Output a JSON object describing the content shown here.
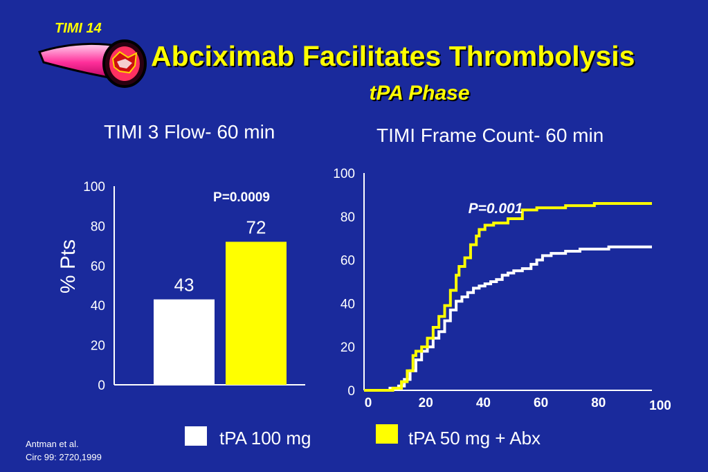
{
  "header": {
    "badge": "TIMI 14",
    "title": "Abciximab Facilitates Thrombolysis",
    "subtitle": "tPA Phase"
  },
  "colors": {
    "background": "#1a2a9c",
    "accent": "#ffff00",
    "series_tpa100": "#ffffff",
    "series_tpa50_abx": "#ffff00"
  },
  "logo": {
    "icon": "artery-thrombus-icon"
  },
  "chart_data": [
    {
      "type": "bar",
      "title": "TIMI 3 Flow- 60 min",
      "ylabel": "% Pts",
      "ylim": [
        0,
        100
      ],
      "yticks": [
        0,
        20,
        40,
        60,
        80,
        100
      ],
      "categories": [
        "tPA 100 mg",
        "tPA 50 mg + Abx"
      ],
      "values": [
        43,
        72
      ],
      "value_labels": [
        "43",
        "72"
      ],
      "bar_colors": [
        "#ffffff",
        "#ffff00"
      ],
      "annotation": "P=0.0009"
    },
    {
      "type": "line",
      "step": true,
      "title": "TIMI Frame Count- 60 min",
      "xlim": [
        0,
        100
      ],
      "ylim": [
        0,
        100
      ],
      "xticks": [
        0,
        20,
        40,
        60,
        80,
        100
      ],
      "yticks": [
        0,
        20,
        40,
        60,
        80,
        100
      ],
      "annotation": "P=0.001",
      "series": [
        {
          "name": "tPA 100 mg",
          "color": "#ffffff",
          "x": [
            0,
            7,
            9,
            12,
            14,
            16,
            18,
            20,
            22,
            24,
            26,
            28,
            30,
            32,
            34,
            36,
            38,
            40,
            42,
            44,
            46,
            48,
            50,
            52,
            55,
            58,
            60,
            62,
            65,
            70,
            75,
            85,
            100
          ],
          "y": [
            0,
            0,
            1,
            2,
            5,
            9,
            14,
            18,
            20,
            24,
            27,
            32,
            37,
            41,
            43,
            45,
            47,
            48,
            49,
            50,
            51,
            53,
            54,
            55,
            56,
            58,
            60,
            62,
            63,
            64,
            65,
            66,
            66
          ]
        },
        {
          "name": "tPA 50 mg + Abx",
          "color": "#ffff00",
          "x": [
            0,
            8,
            10,
            13,
            15,
            17,
            18,
            20,
            22,
            24,
            26,
            28,
            30,
            32,
            33,
            35,
            37,
            39,
            40,
            42,
            45,
            50,
            55,
            60,
            70,
            80,
            100
          ],
          "y": [
            0,
            0,
            1,
            4,
            9,
            16,
            18,
            20,
            24,
            29,
            34,
            39,
            46,
            53,
            57,
            61,
            67,
            71,
            74,
            76,
            77,
            79,
            83,
            84,
            85,
            86,
            86
          ]
        }
      ]
    }
  ],
  "legend": {
    "items": [
      {
        "label": "tPA 100 mg",
        "color": "#ffffff"
      },
      {
        "label": "tPA 50 mg + Abx",
        "color": "#ffff00"
      }
    ]
  },
  "citation": {
    "line1": "Antman et al.",
    "line2": "Circ 99: 2720,1999"
  }
}
